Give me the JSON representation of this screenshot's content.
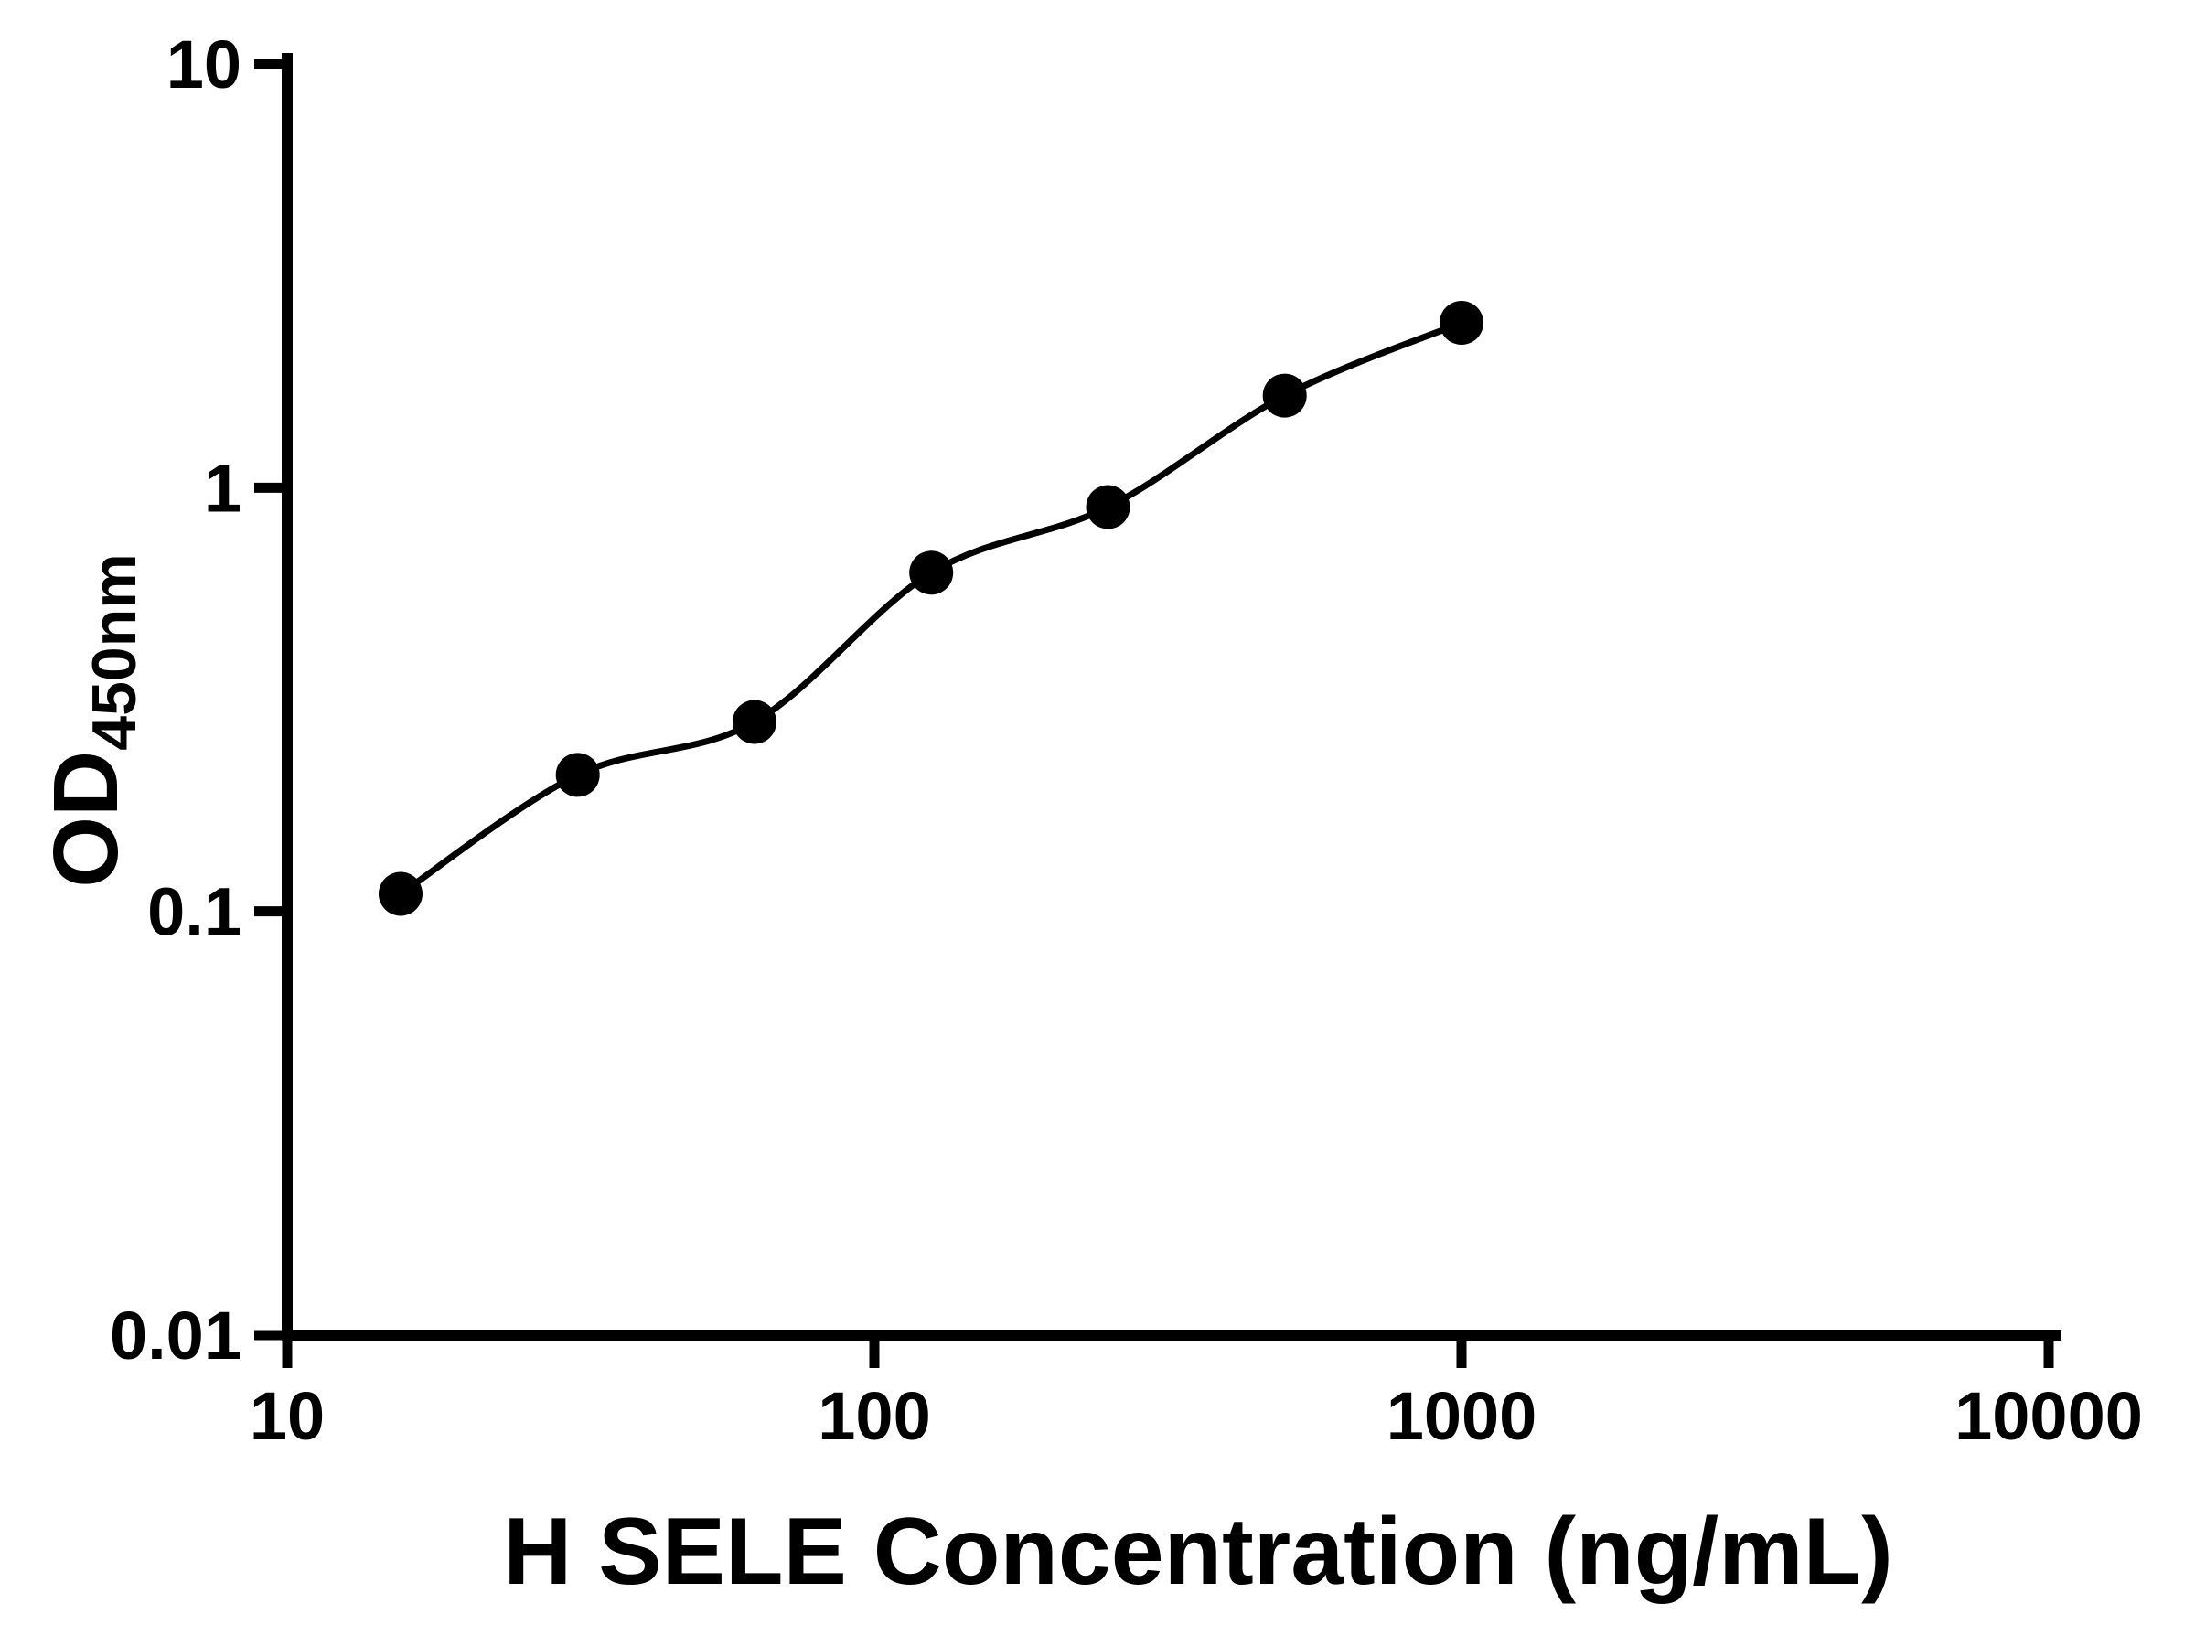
{
  "chart_data": {
    "type": "scatter",
    "xlabel": "H SELE Concentration (ng/mL)",
    "ylabel": "OD450nm",
    "ylabel_main": "OD",
    "ylabel_sub": "450nm",
    "xscale": "log",
    "yscale": "log",
    "xlim": [
      10,
      10000
    ],
    "ylim": [
      0.01,
      10
    ],
    "x_ticks": [
      10,
      100,
      1000,
      10000
    ],
    "x_tick_labels": [
      "10",
      "100",
      "1000",
      "10000"
    ],
    "y_ticks": [
      0.01,
      0.1,
      1,
      10
    ],
    "y_tick_labels": [
      "0.01",
      "0.1",
      "1",
      "10"
    ],
    "grid": false,
    "legend": "none",
    "axis_color": "#000000",
    "background_color": "#ffffff",
    "series": [
      {
        "marker": "filled-circle",
        "color": "#000000",
        "fit_line": true,
        "x": [
          15.6,
          31.25,
          62.5,
          125,
          250,
          500,
          1000
        ],
        "y": [
          0.11,
          0.21,
          0.28,
          0.63,
          0.9,
          1.65,
          2.45
        ]
      }
    ]
  }
}
